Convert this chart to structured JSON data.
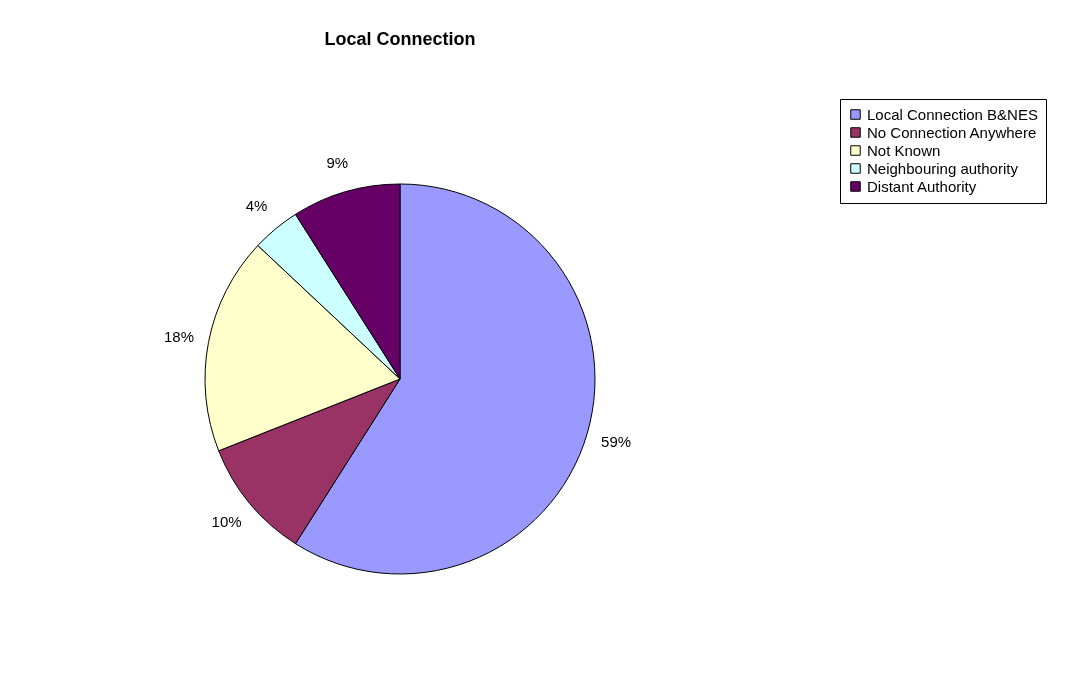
{
  "chart_data": {
    "type": "pie",
    "title": "Local Connection",
    "categories": [
      "Local Connection B&NES",
      "No Connection Anywhere",
      "Not Known",
      "Neighbouring authority",
      "Distant Authority"
    ],
    "values": [
      59,
      10,
      18,
      4,
      9
    ],
    "colors": [
      "#9999ff",
      "#993366",
      "#ffffcc",
      "#ccffff",
      "#660066"
    ],
    "value_labels": [
      "59%",
      "10%",
      "18%",
      "4%",
      "9%"
    ],
    "legend": "right"
  }
}
